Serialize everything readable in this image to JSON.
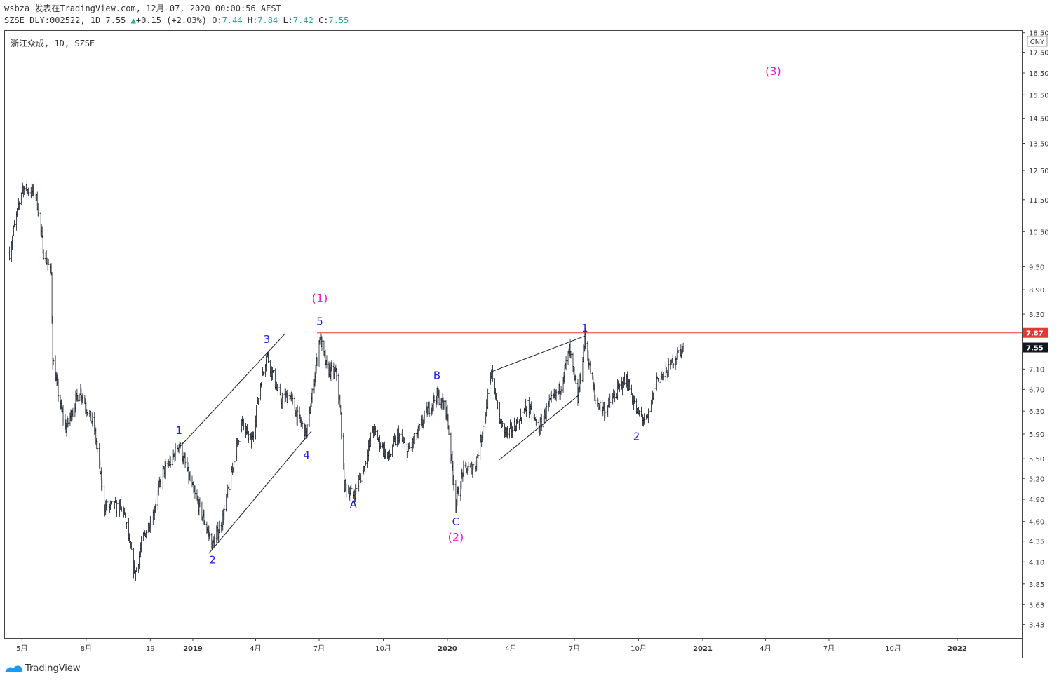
{
  "header": {
    "line1": "wsbza 发表在TradingView.com, 12月 07, 2020 00:00:56 AEST",
    "symbol": "SZSE_DLY:002522, 1D 7.55",
    "change": "+0.15 (+2.03%)",
    "o_label": "O:",
    "o_val": "7.44",
    "h_label": "H:",
    "h_val": "7.84",
    "l_label": "L:",
    "l_val": "7.42",
    "c_label": "C:",
    "c_val": "7.55"
  },
  "chart_title": "浙江众成, 1D, SZSE",
  "currency": "CNY",
  "footer": {
    "brand": "TradingView"
  },
  "colors": {
    "candle": "#131722",
    "resistance": "#e53935",
    "wave": "#1e1ed2",
    "wave_major": "#e020c0",
    "price_last_bg": "#131722",
    "price_resist_bg": "#e53935"
  },
  "chart_data": {
    "type": "candlestick",
    "scale": "log",
    "ylim": [
      3.3,
      18.6
    ],
    "y_ticks": [
      "18.50",
      "17.50",
      "16.50",
      "15.50",
      "14.50",
      "13.50",
      "12.50",
      "11.50",
      "10.50",
      "9.50",
      "8.90",
      "8.30",
      "7.10",
      "6.70",
      "6.30",
      "5.90",
      "5.50",
      "5.20",
      "4.90",
      "4.60",
      "4.35",
      "4.10",
      "3.85",
      "3.63",
      "3.43"
    ],
    "x_ticks": [
      "5月",
      "8月",
      "19",
      "2019",
      "4月",
      "7月",
      "10月",
      "2020",
      "4月",
      "7月",
      "10月",
      "2021",
      "4月",
      "7月",
      "10月",
      "2022"
    ],
    "price_labels": {
      "resistance": "7.87",
      "last": "7.55"
    },
    "resistance_level": 7.87,
    "path": [
      [
        "2018-04-13",
        9.9
      ],
      [
        "2018-05-01",
        11.9
      ],
      [
        "2018-05-21",
        11.7
      ],
      [
        "2018-06-01",
        9.9
      ],
      [
        "2018-06-12",
        9.3
      ],
      [
        "2018-06-14",
        7.3
      ],
      [
        "2018-06-25",
        6.4
      ],
      [
        "2018-07-03",
        6.0
      ],
      [
        "2018-07-23",
        6.7
      ],
      [
        "2018-08-13",
        6.0
      ],
      [
        "2018-08-27",
        4.8
      ],
      [
        "2018-09-10",
        4.8
      ],
      [
        "2018-09-24",
        4.75
      ],
      [
        "2018-10-10",
        3.95
      ],
      [
        "2018-10-22",
        4.4
      ],
      [
        "2018-11-05",
        4.7
      ],
      [
        "2018-11-19",
        5.3
      ],
      [
        "2018-12-03",
        5.5
      ],
      [
        "2018-12-12",
        5.75
      ],
      [
        "2019-01-02",
        5.0
      ],
      [
        "2019-01-16",
        4.65
      ],
      [
        "2019-01-29",
        4.3
      ],
      [
        "2019-02-12",
        4.6
      ],
      [
        "2019-02-26",
        5.3
      ],
      [
        "2019-03-12",
        6.1
      ],
      [
        "2019-03-26",
        5.75
      ],
      [
        "2019-04-10",
        7.0
      ],
      [
        "2019-04-17",
        7.4
      ],
      [
        "2019-05-06",
        6.5
      ],
      [
        "2019-05-20",
        6.6
      ],
      [
        "2019-05-31",
        6.2
      ],
      [
        "2019-06-13",
        5.9
      ],
      [
        "2019-06-21",
        6.6
      ],
      [
        "2019-07-02",
        7.8
      ],
      [
        "2019-07-12",
        7.1
      ],
      [
        "2019-07-26",
        7.0
      ],
      [
        "2019-08-01",
        6.2
      ],
      [
        "2019-08-06",
        5.1
      ],
      [
        "2019-08-19",
        4.95
      ],
      [
        "2019-09-02",
        5.3
      ],
      [
        "2019-09-16",
        6.0
      ],
      [
        "2019-10-08",
        5.5
      ],
      [
        "2019-10-22",
        5.9
      ],
      [
        "2019-11-05",
        5.6
      ],
      [
        "2019-11-19",
        5.9
      ],
      [
        "2019-12-03",
        6.3
      ],
      [
        "2019-12-17",
        6.6
      ],
      [
        "2019-12-31",
        6.3
      ],
      [
        "2020-01-13",
        4.85
      ],
      [
        "2020-01-23",
        5.3
      ],
      [
        "2020-02-10",
        5.4
      ],
      [
        "2020-02-24",
        6.2
      ],
      [
        "2020-03-05",
        7.05
      ],
      [
        "2020-03-16",
        6.1
      ],
      [
        "2020-03-27",
        5.9
      ],
      [
        "2020-04-10",
        6.1
      ],
      [
        "2020-04-24",
        6.4
      ],
      [
        "2020-05-11",
        6.0
      ],
      [
        "2020-05-25",
        6.4
      ],
      [
        "2020-06-10",
        6.7
      ],
      [
        "2020-06-24",
        7.5
      ],
      [
        "2020-07-06",
        6.5
      ],
      [
        "2020-07-16",
        7.75
      ],
      [
        "2020-07-31",
        6.5
      ],
      [
        "2020-08-14",
        6.3
      ],
      [
        "2020-08-28",
        6.6
      ],
      [
        "2020-09-14",
        6.9
      ],
      [
        "2020-09-28",
        6.3
      ],
      [
        "2020-10-13",
        6.1
      ],
      [
        "2020-10-27",
        6.9
      ],
      [
        "2020-11-10",
        7.0
      ],
      [
        "2020-11-20",
        7.3
      ],
      [
        "2020-12-04",
        7.55
      ]
    ],
    "wave_labels": [
      {
        "text": "(1)",
        "date": "2019-07-02",
        "price": 8.6,
        "group": "major"
      },
      {
        "text": "5",
        "date": "2019-07-02",
        "price": 8.05,
        "group": "minor"
      },
      {
        "text": "1",
        "date": "2018-12-12",
        "price": 5.9,
        "group": "minor"
      },
      {
        "text": "2",
        "date": "2019-01-29",
        "price": 4.08,
        "group": "minor"
      },
      {
        "text": "3",
        "date": "2019-04-17",
        "price": 7.65,
        "group": "minor"
      },
      {
        "text": "4",
        "date": "2019-06-13",
        "price": 5.5,
        "group": "minor"
      },
      {
        "text": "A",
        "date": "2019-08-19",
        "price": 4.78,
        "group": "minor"
      },
      {
        "text": "B",
        "date": "2019-12-17",
        "price": 6.9,
        "group": "minor"
      },
      {
        "text": "C",
        "date": "2020-01-13",
        "price": 4.55,
        "group": "minor"
      },
      {
        "text": "(2)",
        "date": "2020-01-13",
        "price": 4.35,
        "group": "major"
      },
      {
        "text": "1",
        "date": "2020-07-16",
        "price": 7.9,
        "group": "minor"
      },
      {
        "text": "2",
        "date": "2020-09-28",
        "price": 5.8,
        "group": "minor"
      },
      {
        "text": "(3)",
        "date": "2021-04-12",
        "price": 16.4,
        "group": "major"
      }
    ],
    "trend_lines": [
      {
        "from": [
          "2018-12-10",
          5.65
        ],
        "to": [
          "2019-05-13",
          7.85
        ]
      },
      {
        "from": [
          "2019-01-24",
          4.2
        ],
        "to": [
          "2019-06-20",
          5.95
        ]
      },
      {
        "from": [
          "2020-03-05",
          7.05
        ],
        "to": [
          "2020-07-16",
          7.8
        ]
      },
      {
        "from": [
          "2020-03-15",
          5.48
        ],
        "to": [
          "2020-07-08",
          6.6
        ]
      }
    ]
  }
}
